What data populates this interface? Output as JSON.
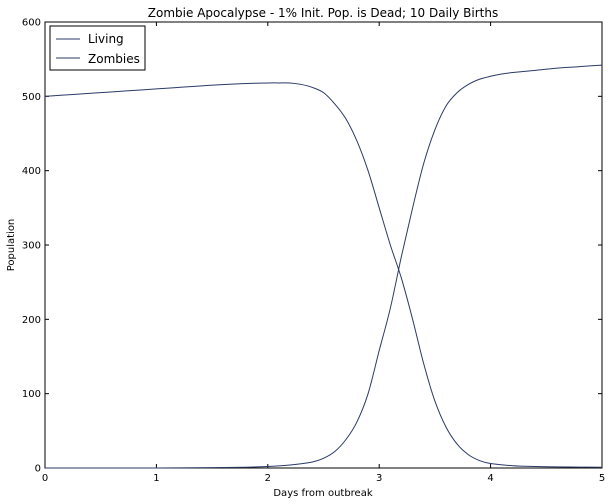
{
  "chart_data": {
    "type": "line",
    "title": "Zombie Apocalypse - 1% Init. Pop. is Dead; 10 Daily Births",
    "xlabel": "Days from outbreak",
    "ylabel": "Population",
    "xlim": [
      0,
      5
    ],
    "ylim": [
      0,
      600
    ],
    "xticks": [
      0,
      1,
      2,
      3,
      4,
      5
    ],
    "yticks": [
      0,
      100,
      200,
      300,
      400,
      500,
      600
    ],
    "xtick_labels": [
      "0",
      "1",
      "2",
      "3",
      "4",
      "5"
    ],
    "ytick_labels": [
      "0",
      "100",
      "200",
      "300",
      "400",
      "500",
      "600"
    ],
    "grid": false,
    "legend_position": "top-left",
    "line_color": "#2b3a67",
    "series": [
      {
        "name": "Living",
        "x": [
          0,
          0.25,
          0.5,
          0.75,
          1.0,
          1.25,
          1.5,
          1.75,
          2.0,
          2.1,
          2.2,
          2.3,
          2.4,
          2.5,
          2.6,
          2.7,
          2.8,
          2.9,
          3.0,
          3.1,
          3.2,
          3.3,
          3.4,
          3.5,
          3.6,
          3.7,
          3.8,
          3.9,
          4.0,
          4.2,
          4.4,
          4.6,
          4.8,
          5.0
        ],
        "values": [
          500,
          502.5,
          505,
          507.5,
          510,
          512.5,
          515,
          517,
          518,
          518,
          518,
          516,
          512,
          505,
          490,
          470,
          440,
          400,
          350,
          300,
          255,
          200,
          140,
          90,
          55,
          32,
          18,
          10,
          6,
          3,
          2,
          1.5,
          1.2,
          1
        ]
      },
      {
        "name": "Zombies",
        "x": [
          0,
          0.5,
          1.0,
          1.5,
          1.8,
          2.0,
          2.2,
          2.4,
          2.5,
          2.6,
          2.7,
          2.8,
          2.9,
          3.0,
          3.1,
          3.2,
          3.3,
          3.4,
          3.5,
          3.6,
          3.7,
          3.8,
          3.9,
          4.0,
          4.1,
          4.2,
          4.4,
          4.6,
          4.8,
          5.0
        ],
        "values": [
          0,
          0,
          0,
          0.5,
          1,
          2,
          4,
          8,
          13,
          22,
          38,
          62,
          100,
          158,
          215,
          285,
          350,
          410,
          455,
          487,
          505,
          516,
          523,
          527,
          530,
          532,
          535,
          538,
          540,
          542
        ]
      }
    ]
  }
}
